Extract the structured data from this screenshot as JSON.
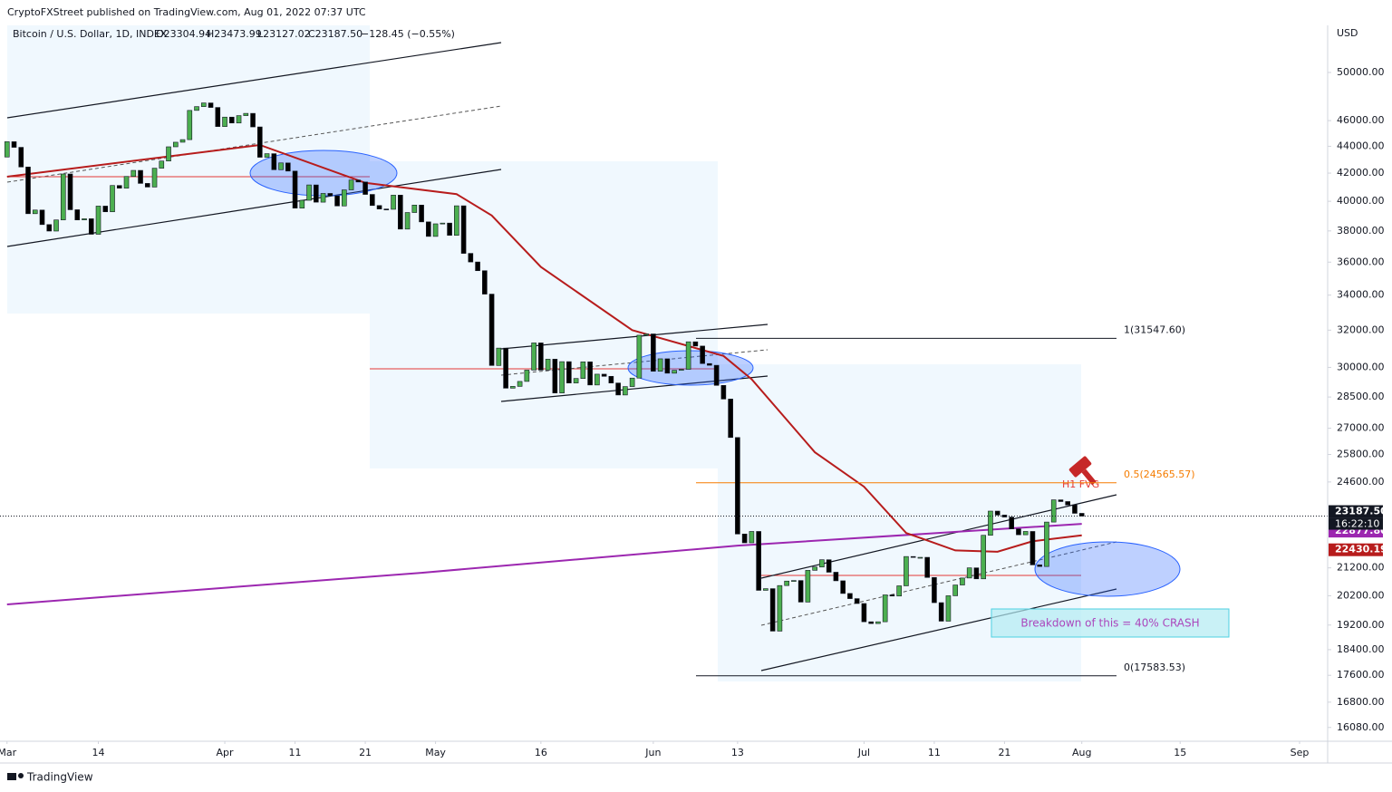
{
  "header": {
    "publisher": "CryptoFXStreet published on TradingView.com, Aug 01, 2022 07:37 UTC",
    "symbol": "Bitcoin / U.S. Dollar, 1D, INDEX",
    "open": "O23304.94",
    "high": "H23473.99",
    "low": "L23127.02",
    "close": "C23187.50",
    "change": "−128.45 (−0.55%)"
  },
  "footer": {
    "brand": "TradingView"
  },
  "chart_data": {
    "type": "candlestick",
    "log_scale": true,
    "grid": false,
    "currency": "USD",
    "up_color": "#4caf50",
    "down_color": "#000000",
    "xlim": [
      0,
      189
    ],
    "xticks": [
      {
        "value": 1,
        "label": "Mar"
      },
      {
        "value": 14,
        "label": "14"
      },
      {
        "value": 32,
        "label": "Apr"
      },
      {
        "value": 42,
        "label": "11"
      },
      {
        "value": 52,
        "label": "21"
      },
      {
        "value": 62,
        "label": "May"
      },
      {
        "value": 77,
        "label": "16"
      },
      {
        "value": 93,
        "label": "Jun"
      },
      {
        "value": 105,
        "label": "13"
      },
      {
        "value": 123,
        "label": "Jul"
      },
      {
        "value": 133,
        "label": "11"
      },
      {
        "value": 143,
        "label": "21"
      },
      {
        "value": 154,
        "label": "Aug"
      },
      {
        "value": 168,
        "label": "15"
      },
      {
        "value": 185,
        "label": "Sep"
      }
    ],
    "ylim": [
      15700,
      54250
    ],
    "yticks": [
      {
        "value": 50000,
        "label": "50000.00"
      },
      {
        "value": 46000,
        "label": "46000.00"
      },
      {
        "value": 44000,
        "label": "44000.00"
      },
      {
        "value": 42000,
        "label": "42000.00"
      },
      {
        "value": 40000,
        "label": "40000.00"
      },
      {
        "value": 38000,
        "label": "38000.00"
      },
      {
        "value": 36000,
        "label": "36000.00"
      },
      {
        "value": 34000,
        "label": "34000.00"
      },
      {
        "value": 32000,
        "label": "32000.00"
      },
      {
        "value": 30000,
        "label": "30000.00"
      },
      {
        "value": 28500,
        "label": "28500.00"
      },
      {
        "value": 27000,
        "label": "27000.00"
      },
      {
        "value": 25800,
        "label": "25800.00"
      },
      {
        "value": 24600,
        "label": "24600.00"
      },
      {
        "value": 21200,
        "label": "21200.00"
      },
      {
        "value": 20200,
        "label": "20200.00"
      },
      {
        "value": 19200,
        "label": "19200.00"
      },
      {
        "value": 18400,
        "label": "18400.00"
      },
      {
        "value": 17600,
        "label": "17600.00"
      },
      {
        "value": 16800,
        "label": "16800.00"
      },
      {
        "value": 16080,
        "label": "16080.00"
      }
    ],
    "series": [
      {
        "name": "Bitcoin / U.S. Dollar",
        "values": [
          43190,
          44350,
          43920,
          42450,
          39150,
          39400,
          38420,
          37990,
          38730,
          41940,
          39420,
          38730,
          38810,
          37780,
          39670,
          39280,
          41110,
          40920,
          41760,
          42200,
          41260,
          41000,
          42360,
          42890,
          43960,
          44310,
          44510,
          46820,
          47130,
          47430,
          47060,
          45530,
          46280,
          45810,
          46400,
          46580,
          45500,
          43170,
          43440,
          42250,
          42750,
          42150,
          39530,
          40070,
          41150,
          39940,
          40550,
          40390,
          39680,
          40800,
          41500,
          41360,
          40480,
          39710,
          39470,
          39450,
          40430,
          38120,
          39230,
          39740,
          38600,
          37640,
          38470,
          38520,
          37710,
          39690,
          36550,
          36010,
          35470,
          34060,
          30100,
          31020,
          28940,
          29030,
          29280,
          29860,
          31300,
          29860,
          30430,
          28700,
          30300,
          29200,
          29430,
          30290,
          29100,
          29650,
          29540,
          29200,
          28600,
          29020,
          29450,
          31720,
          31790,
          29800,
          30450,
          29700,
          29850,
          29900,
          31360,
          31130,
          30200,
          30110,
          29080,
          28400,
          26570,
          22480,
          22140,
          22580,
          20390,
          20450,
          19000,
          20560,
          20720,
          20740,
          19980,
          21110,
          21230,
          21500,
          21040,
          20730,
          20280,
          20100,
          19930,
          19310,
          19250,
          19310,
          20230,
          20190,
          20550,
          21620,
          21590,
          21590,
          20850,
          19960,
          19330,
          20200,
          20580,
          20830,
          21200,
          20800,
          22430,
          23390,
          23230,
          23150,
          22680,
          22450,
          22580,
          21310,
          21250,
          22950,
          23850,
          23780,
          23640,
          23300,
          23187.5
        ]
      }
    ],
    "moving_averages": [
      {
        "color": "#9c27b0",
        "x": [
          1,
          60,
          105,
          154
        ],
        "values": [
          19900,
          21020,
          22030,
          22877.8
        ]
      },
      {
        "color": "#b71c1c",
        "x": [
          1,
          37,
          52,
          65,
          70,
          77,
          90,
          103,
          107,
          116,
          123,
          129,
          136,
          142,
          147,
          154
        ],
        "values": [
          41740,
          44100,
          41300,
          40500,
          39030,
          35700,
          32000,
          30600,
          29390,
          25900,
          24400,
          22520,
          21850,
          21800,
          22200,
          22430.19
        ]
      }
    ],
    "price_labels": [
      {
        "value": 23187.5,
        "label": "23187.50",
        "color": "#131722"
      },
      {
        "value": 22877.8,
        "label": "22877.80",
        "color": "#9c27b0"
      },
      {
        "value": 22430.19,
        "label": "22430.19",
        "color": "#b71c1c"
      }
    ],
    "countdown": "16:22:10",
    "fib_levels": [
      {
        "value": 31547.6,
        "label": "1(31547.60)",
        "color": "#131722"
      },
      {
        "value": 24565.57,
        "label": "0.5(24565.57)",
        "color": "#f57c00"
      },
      {
        "value": 17583.53,
        "label": "0(17583.53)",
        "color": "#131722"
      }
    ],
    "annotations": {
      "fvg": "H1 FVG",
      "breakdown": "Breakdown of this = 40% CRASH"
    }
  }
}
